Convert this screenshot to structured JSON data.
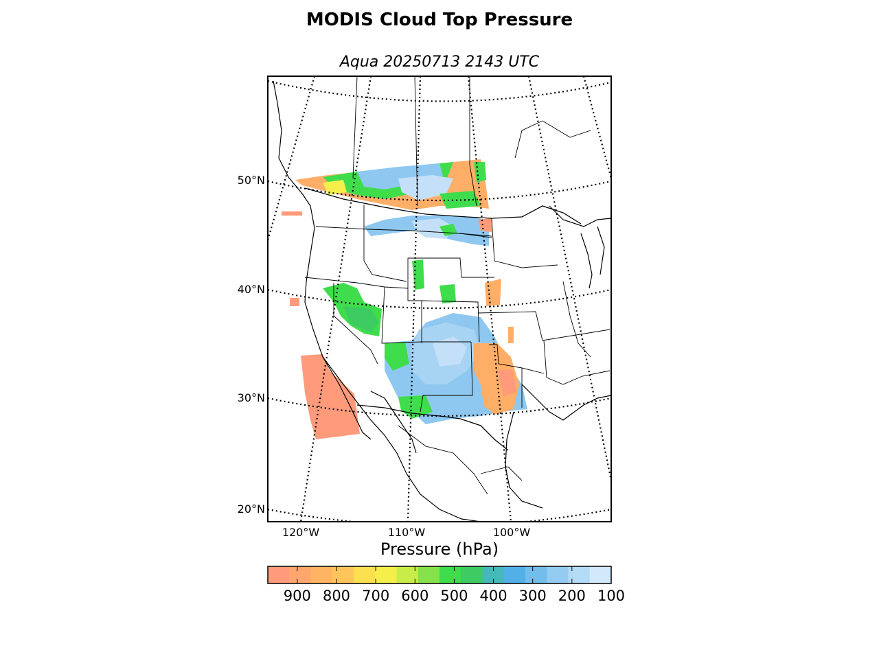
{
  "title": "MODIS Cloud Top Pressure",
  "subtitle": "Aqua 20250713 2143 UTC",
  "map": {
    "projection": "lambert-conformal",
    "lat_labels": [
      "50°N",
      "40°N",
      "30°N",
      "20°N"
    ],
    "lon_labels": [
      "120°W",
      "110°W",
      "100°W"
    ],
    "graticule_style": "dotted",
    "features": [
      "coastlines",
      "country-borders",
      "state-borders",
      "lakes"
    ]
  },
  "colorbar": {
    "label": "Pressure (hPa)",
    "ticks": [
      "900",
      "800",
      "700",
      "600",
      "500",
      "400",
      "300",
      "200",
      "100"
    ],
    "range_hpa": [
      975,
      100
    ],
    "colors": [
      "#ff9a7a",
      "#ffa66e",
      "#ffb464",
      "#ffc45a",
      "#fde050",
      "#f4ef4a",
      "#c8ec48",
      "#86e24a",
      "#3fdc4c",
      "#3ccc62",
      "#45b8ba",
      "#52b0e6",
      "#72bdec",
      "#94cbf0",
      "#b4dbf5",
      "#d2e8fb"
    ]
  },
  "colors": {
    "low_cloud": "#ff9a7a",
    "mid_low_cloud": "#ffae68",
    "mid_cloud": "#3fdc4c",
    "high_cloud": "#8ec8f0",
    "very_high_cloud": "#c4e0f8"
  }
}
